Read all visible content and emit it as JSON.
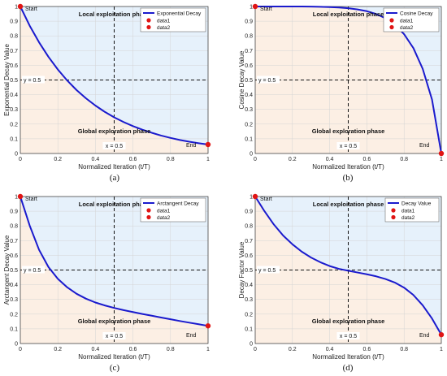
{
  "chart_data": [
    {
      "type": "line",
      "caption": "(a)",
      "xlabel": "Normalized Iteration (t/T)",
      "ylabel": "Exponential Decay Value",
      "xlim": [
        0,
        1
      ],
      "ylim": [
        0,
        1
      ],
      "xticks": [
        "0",
        "0.2",
        "0.4",
        "0.6",
        "0.8",
        "1"
      ],
      "yticks": [
        "0",
        "0.1",
        "0.2",
        "0.3",
        "0.4",
        "0.5",
        "0.6",
        "0.7",
        "0.8",
        "0.9",
        "1"
      ],
      "grid": true,
      "x": [
        0,
        0.05,
        0.1,
        0.15,
        0.2,
        0.25,
        0.3,
        0.35,
        0.4,
        0.45,
        0.5,
        0.55,
        0.6,
        0.65,
        0.7,
        0.75,
        0.8,
        0.85,
        0.9,
        0.95,
        1
      ],
      "series": [
        {
          "name": "Exponential Decay",
          "values": [
            1,
            0.869,
            0.756,
            0.657,
            0.571,
            0.496,
            0.431,
            0.375,
            0.326,
            0.283,
            0.246,
            0.214,
            0.186,
            0.162,
            0.141,
            0.122,
            0.106,
            0.092,
            0.08,
            0.07,
            0.061
          ],
          "color": "#1a1acd"
        }
      ],
      "points": [
        {
          "name": "data1",
          "x": 0,
          "y": 1,
          "label": "Start"
        },
        {
          "name": "data2",
          "x": 1,
          "y": 0.061,
          "label": "End"
        }
      ],
      "refline_x": {
        "value": 0.5,
        "label": "x = 0.5"
      },
      "refline_y": {
        "value": 0.5,
        "label": "y = 0.5"
      },
      "top_region": "Local exploitation phase",
      "bottom_region": "Global exploration phase",
      "legend": [
        "Exponential Decay",
        "data1",
        "data2"
      ],
      "legend_position": "top-right"
    },
    {
      "type": "line",
      "caption": "(b)",
      "xlabel": "Normalized Iteration (t/T)",
      "ylabel": "Cosine  Decay Value",
      "xlim": [
        0,
        1
      ],
      "ylim": [
        0,
        1
      ],
      "xticks": [
        "0",
        "0.2",
        "0.4",
        "0.6",
        "0.8",
        "1"
      ],
      "yticks": [
        "0",
        "0.1",
        "0.2",
        "0.3",
        "0.4",
        "0.5",
        "0.6",
        "0.7",
        "0.8",
        "0.9",
        "1"
      ],
      "grid": true,
      "x": [
        0,
        0.05,
        0.1,
        0.15,
        0.2,
        0.25,
        0.3,
        0.35,
        0.4,
        0.45,
        0.5,
        0.55,
        0.6,
        0.65,
        0.7,
        0.75,
        0.8,
        0.85,
        0.9,
        0.95,
        1
      ],
      "series": [
        {
          "name": "Cosine  Decay",
          "values": [
            1,
            1,
            1,
            1,
            1,
            1,
            0.999,
            0.998,
            0.996,
            0.993,
            0.988,
            0.98,
            0.968,
            0.949,
            0.92,
            0.877,
            0.812,
            0.717,
            0.576,
            0.367,
            0
          ],
          "color": "#1a1acd"
        }
      ],
      "points": [
        {
          "name": "data1",
          "x": 0,
          "y": 1,
          "label": "Start"
        },
        {
          "name": "data2",
          "x": 1,
          "y": 0,
          "label": "End"
        }
      ],
      "refline_x": {
        "value": 0.5,
        "label": "x = 0.5"
      },
      "refline_y": {
        "value": 0.5,
        "label": "y = 0.5"
      },
      "top_region": "Local exploitation phase",
      "bottom_region": "Global exploration phase",
      "legend": [
        "Cosine  Decay",
        "data1",
        "data2"
      ],
      "legend_position": "top-right"
    },
    {
      "type": "line",
      "caption": "(c)",
      "xlabel": "Normalized Iteration (t/T)",
      "ylabel": "Arctangent  Decay Value",
      "xlim": [
        0,
        1
      ],
      "ylim": [
        0,
        1
      ],
      "xticks": [
        "0",
        "0.2",
        "0.4",
        "0.6",
        "0.8",
        "1"
      ],
      "yticks": [
        "0",
        "0.1",
        "0.2",
        "0.3",
        "0.4",
        "0.5",
        "0.6",
        "0.7",
        "0.8",
        "0.9",
        "1"
      ],
      "grid": true,
      "x": [
        0,
        0.05,
        0.1,
        0.15,
        0.2,
        0.25,
        0.3,
        0.35,
        0.4,
        0.45,
        0.5,
        0.55,
        0.6,
        0.65,
        0.7,
        0.75,
        0.8,
        0.85,
        0.9,
        0.95,
        1
      ],
      "series": [
        {
          "name": "Arctangent  Decay",
          "values": [
            1,
            0.802,
            0.637,
            0.52,
            0.44,
            0.382,
            0.338,
            0.305,
            0.279,
            0.259,
            0.242,
            0.227,
            0.214,
            0.201,
            0.189,
            0.177,
            0.165,
            0.153,
            0.142,
            0.131,
            0.12
          ],
          "color": "#1a1acd"
        }
      ],
      "points": [
        {
          "name": "data1",
          "x": 0,
          "y": 1,
          "label": "Start"
        },
        {
          "name": "data2",
          "x": 1,
          "y": 0.12,
          "label": "End"
        }
      ],
      "refline_x": {
        "value": 0.5,
        "label": "x = 0.5"
      },
      "refline_y": {
        "value": 0.5,
        "label": "y = 0.5"
      },
      "top_region": "Local exploitation phase",
      "bottom_region": "Global exploration phase",
      "legend": [
        "Arctangent  Decay",
        "data1",
        "data2"
      ],
      "legend_position": "top-right"
    },
    {
      "type": "line",
      "caption": "(d)",
      "xlabel": "Normalized Iteration (t/T)",
      "ylabel": "Decay Factor Value",
      "xlim": [
        0,
        1
      ],
      "ylim": [
        0,
        1
      ],
      "xticks": [
        "0",
        "0.2",
        "0.4",
        "0.6",
        "0.8",
        "1"
      ],
      "yticks": [
        "0",
        "0.1",
        "0.2",
        "0.3",
        "0.4",
        "0.5",
        "0.6",
        "0.7",
        "0.8",
        "0.9",
        "1"
      ],
      "grid": true,
      "x": [
        0,
        0.05,
        0.1,
        0.15,
        0.2,
        0.25,
        0.3,
        0.35,
        0.4,
        0.45,
        0.5,
        0.55,
        0.6,
        0.65,
        0.7,
        0.75,
        0.8,
        0.85,
        0.9,
        0.95,
        1
      ],
      "series": [
        {
          "name": "Decay Value",
          "values": [
            1,
            0.9,
            0.81,
            0.735,
            0.675,
            0.625,
            0.585,
            0.553,
            0.527,
            0.508,
            0.495,
            0.483,
            0.471,
            0.457,
            0.439,
            0.415,
            0.38,
            0.33,
            0.26,
            0.17,
            0.06
          ],
          "color": "#1a1acd"
        }
      ],
      "points": [
        {
          "name": "data1",
          "x": 0,
          "y": 1,
          "label": "Start"
        },
        {
          "name": "data2",
          "x": 1,
          "y": 0.06,
          "label": "End"
        }
      ],
      "refline_x": {
        "value": 0.5,
        "label": "x = 0.5"
      },
      "refline_y": {
        "value": 0.5,
        "label": "y = 0.5"
      },
      "top_region": "Local exploitation phase",
      "bottom_region": "Global exploration phase",
      "legend": [
        "Decay Value",
        "data1",
        "data2"
      ],
      "legend_position": "top-right"
    }
  ],
  "colors": {
    "curve": "#1a1acd",
    "marker": "#e01515",
    "top_fill": "#e6f1fb",
    "bottom_fill": "#fcefe4",
    "grid": "#d4d4d4"
  }
}
